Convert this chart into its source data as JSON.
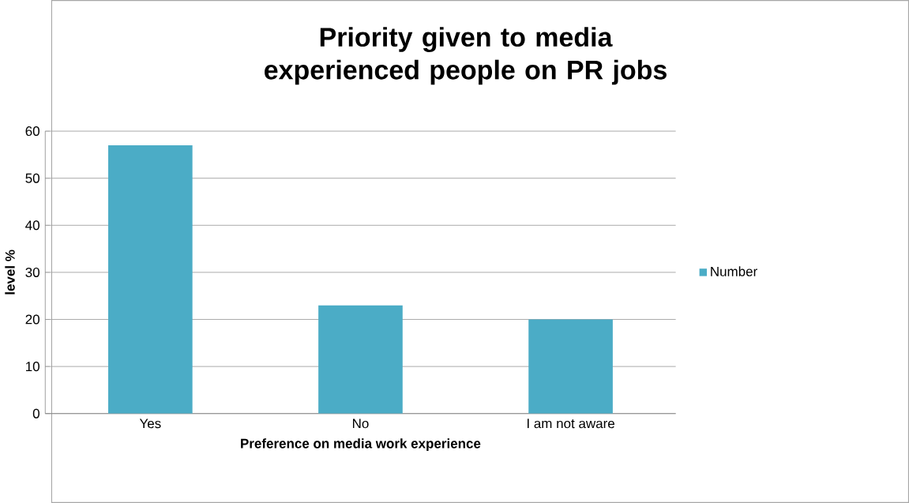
{
  "chart_data": {
    "type": "bar",
    "title": "Priority given to media experienced people on PR jobs",
    "xlabel": "Preference on media work experience",
    "ylabel": "level %",
    "categories": [
      "Yes",
      "No",
      "I am not aware"
    ],
    "series": [
      {
        "name": "Number",
        "color": "#4bacc6",
        "values": [
          57,
          23,
          20
        ]
      }
    ],
    "ylim": [
      0,
      60
    ],
    "yticks": [
      0,
      10,
      20,
      30,
      40,
      50,
      60
    ],
    "grid": "y",
    "legend": "right"
  }
}
